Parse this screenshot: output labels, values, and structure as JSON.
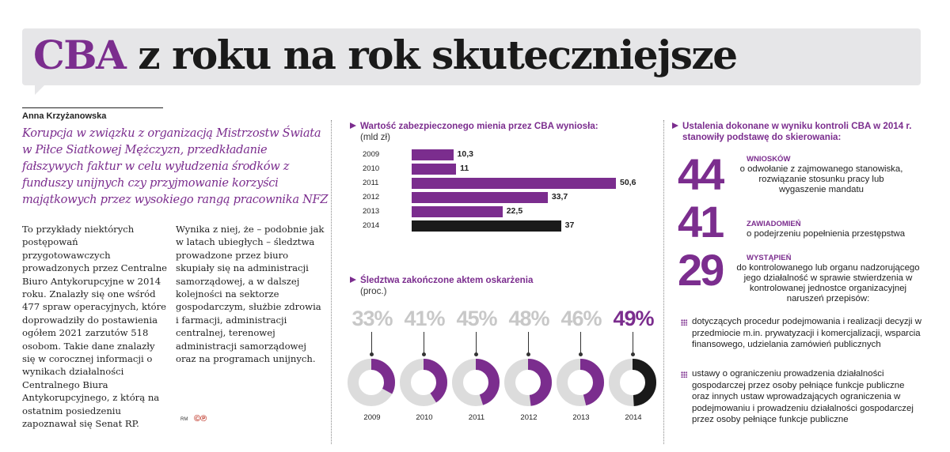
{
  "title": {
    "accent": "CBA",
    "rest": " z roku na rok skuteczniejsze"
  },
  "author": "Anna Krzyżanowska",
  "lead": "Korupcja w związku z organizacją Mistrzostw Świata w Piłce Siatkowej Mężczyzn, przedkładanie fałszywych faktur w celu wyłudzenia środków z funduszy unijnych czy przyjmowanie korzyści majątkowych przez wysokiego rangą pracownika NFZ",
  "body_col1": "To przykłady niektórych postępowań przygotowawczych prowadzonych przez Centralne Biuro Antykorupcyjne w 2014 roku. Znalazły się one wśród 477 spraw operacyjnych, które doprowadziły do postawienia ogółem 2021 zarzutów 518 osobom. Takie dane znalazły się w corocznej informacji o wynikach działalności Centralnego Biura Antykorupcyjnego, z którą na ostatnim posiedzeniu zapoznawał się Senat RP.",
  "body_col2": "Wynika z niej, że – podobnie jak w latach ubiegłych – śledztwa prowadzone przez biuro skupiały się na administracji samorządowej, a w dalszej kolejności na sektorze gospodarczym, służbie zdrowia i farmacji, administracji centralnej, terenowej administracji samorządowej oraz na programach unijnych.",
  "credit": "RM",
  "chart_data": [
    {
      "type": "bar",
      "title": "Wartość zabezpieczonego mienia przez CBA wyniosła:",
      "subtitle": "(mld zł)",
      "categories": [
        "2009",
        "2010",
        "2011",
        "2012",
        "2013",
        "2014"
      ],
      "values": [
        10.3,
        11,
        50.6,
        33.7,
        22.5,
        37
      ],
      "value_labels": [
        "10,3",
        "11",
        "50,6",
        "33,7",
        "22,5",
        "37"
      ],
      "colors": [
        "#7b2d8e",
        "#7b2d8e",
        "#7b2d8e",
        "#7b2d8e",
        "#7b2d8e",
        "#1a1a1a"
      ]
    },
    {
      "type": "pie",
      "title": "Śledztwa zakończone aktem oskarżenia",
      "subtitle": "(proc.)",
      "categories": [
        "2009",
        "2010",
        "2011",
        "2012",
        "2013",
        "2014"
      ],
      "values": [
        33,
        41,
        45,
        48,
        46,
        49
      ],
      "value_labels": [
        "33%",
        "41%",
        "45%",
        "48%",
        "46%",
        "49%"
      ],
      "highlight": "2014",
      "fill_color": "#7b2d8e",
      "highlight_color": "#1a1a1a",
      "rest_color": "#dcdcdc"
    }
  ],
  "findings": {
    "title": "Ustalenia dokonane w wyniku kontroli CBA w 2014 r. stanowiły podstawę do skierowania:",
    "items": [
      {
        "number": "44",
        "label": "WNIOSKÓW",
        "text": "o odwołanie z zajmowanego stanowiska, rozwiązanie stosunku pracy lub wygaszenie mandatu"
      },
      {
        "number": "41",
        "label": "ZAWIADOMIEŃ",
        "text": "o podejrzeniu popełnienia przestępstwa"
      },
      {
        "number": "29",
        "label": "WYSTĄPIEŃ",
        "text": "do kontrolowanego lub organu nadzorującego jego działalność w sprawie stwierdzenia w kontrolowanej jednostce organizacyjnej naruszeń przepisów:"
      }
    ],
    "bullets": [
      "dotyczących procedur podejmowania i realizacji decyzji w przedmiocie m.in. prywatyzacji i komercjalizacji, wsparcia finansowego, udzielania zamówień publicznych",
      "ustawy o ograniczeniu prowadzenia działalności gospodarczej przez osoby pełniące funkcje publiczne oraz innych ustaw wprowadzających ograniczenia w podejmowaniu i prowadzeniu działalności gospodarczej przez osoby pełniące funkcje publiczne"
    ]
  }
}
